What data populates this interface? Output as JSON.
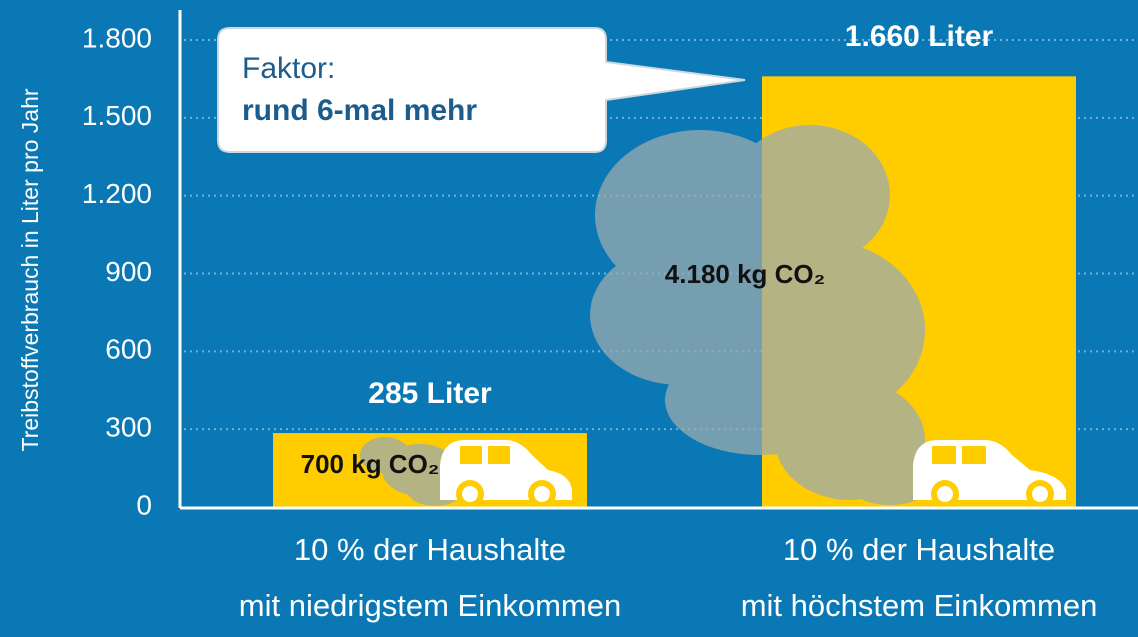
{
  "chart_data": {
    "type": "bar",
    "y_label": "Treibstoffverbrauch in Liter pro Jahr",
    "categories": [
      [
        "10 % der Haushalte",
        "mit niedrigstem Einkommen"
      ],
      [
        "10 % der Haushalte",
        "mit höchstem Einkommen"
      ]
    ],
    "values": [
      285,
      1660
    ],
    "value_labels": [
      "285 Liter",
      "1.660 Liter"
    ],
    "annotations": [
      "700 kg CO₂",
      "4.180 kg CO₂"
    ],
    "callout": [
      "Faktor:",
      "rund 6-mal mehr"
    ],
    "color": "#ffcc00",
    "ylim": [
      0,
      1800
    ],
    "yticks": [
      0,
      300,
      600,
      900,
      {
        "value": 1200,
        "label": "1.200"
      },
      {
        "value": 1500,
        "label": "1.500"
      },
      {
        "value": 1800,
        "label": "1.800"
      }
    ],
    "grid": true
  }
}
